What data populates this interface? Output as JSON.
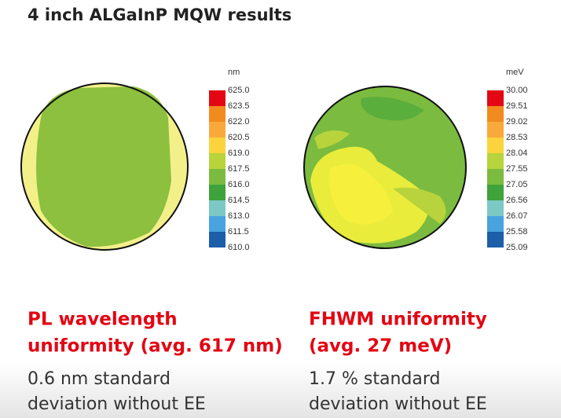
{
  "title": "4 inch ALGaInP MQW results",
  "panels": [
    {
      "unit": "nm",
      "scale": [
        "625.0",
        "623.5",
        "622.0",
        "620.5",
        "619.0",
        "617.5",
        "616.0",
        "614.5",
        "613.0",
        "611.5",
        "610.0"
      ],
      "colors": [
        "#e30613",
        "#f18a1f",
        "#f9a93b",
        "#fbd33d",
        "#b8d33c",
        "#7bbb3f",
        "#3da33a",
        "#7cc8c4",
        "#49a3de",
        "#1d5ea8"
      ],
      "heading": [
        "PL wavelength",
        "uniformity (avg. 617 nm)"
      ],
      "description": [
        "0.6 nm standard",
        "deviation without EE"
      ]
    },
    {
      "unit": "meV",
      "scale": [
        "30.00",
        "29.51",
        "29.02",
        "28.53",
        "28.04",
        "27.55",
        "27.05",
        "26.56",
        "26.07",
        "25.58",
        "25.09"
      ],
      "colors": [
        "#e30613",
        "#f18a1f",
        "#f9a93b",
        "#fbd33d",
        "#b8d33c",
        "#7bbb3f",
        "#3da33a",
        "#7cc8c4",
        "#49a3de",
        "#1d5ea8"
      ],
      "heading": [
        "FHWM uniformity",
        "(avg. 27 meV)"
      ],
      "description": [
        "1.7 % standard",
        "deviation without EE"
      ]
    }
  ]
}
